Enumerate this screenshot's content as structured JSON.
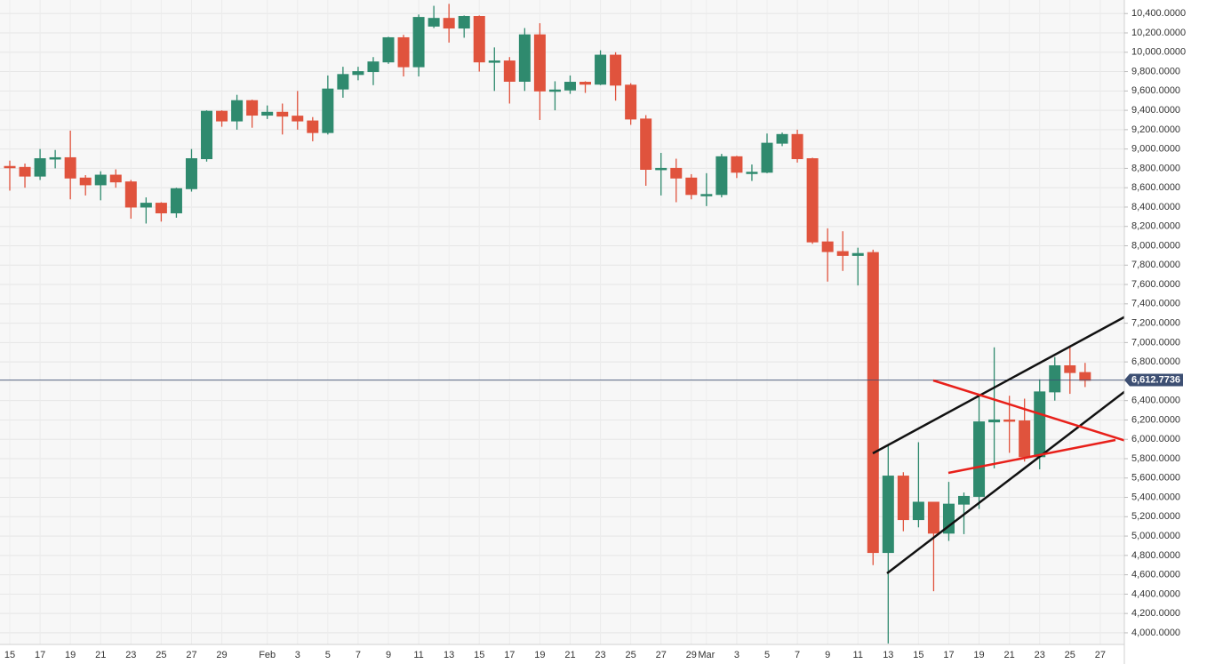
{
  "chart_data": {
    "type": "candlestick",
    "categories": [
      "15",
      null,
      "17",
      null,
      "19",
      null,
      "21",
      null,
      "23",
      null,
      "25",
      null,
      "27",
      null,
      "29",
      null,
      null,
      "Feb",
      null,
      "3",
      null,
      "5",
      null,
      "7",
      null,
      "9",
      null,
      "11",
      null,
      "13",
      null,
      "15",
      null,
      "17",
      null,
      "19",
      null,
      "21",
      null,
      "23",
      null,
      "25",
      null,
      "27",
      null,
      "29",
      "Mar",
      null,
      "3",
      null,
      "5",
      null,
      "7",
      null,
      "9",
      null,
      "11",
      null,
      "13",
      null,
      "15",
      null,
      "17",
      null,
      "19",
      null,
      "21",
      null,
      "23",
      null,
      "25",
      null,
      "27"
    ],
    "open": [
      8820,
      8810,
      8720,
      8900,
      8910,
      8700,
      8630,
      8730,
      8660,
      8400,
      8440,
      8340,
      8590,
      8900,
      9390,
      9290,
      9500,
      9350,
      9380,
      9340,
      9290,
      9170,
      9620,
      9770,
      9800,
      9900,
      10150,
      9850,
      10270,
      10350,
      10250,
      10370,
      9900,
      9910,
      9700,
      10180,
      9600,
      9610,
      9690,
      9670,
      9970,
      9660,
      9310,
      8790,
      8800,
      8700,
      8530,
      8530,
      8920,
      8760,
      8760,
      9060,
      9150,
      8900,
      8040,
      7940,
      7900,
      7930,
      4830,
      5620,
      5170,
      5350,
      5030,
      5330,
      5410,
      6180,
      6200,
      6190,
      5820,
      6490,
      6760,
      6690,
      null
    ],
    "high": [
      8880,
      8850,
      9000,
      8990,
      9190,
      8730,
      8770,
      8790,
      8680,
      8500,
      8450,
      8600,
      9000,
      9400,
      9400,
      9560,
      9510,
      9450,
      9470,
      9600,
      9330,
      9760,
      9850,
      9850,
      9950,
      10160,
      10180,
      10390,
      10480,
      10500,
      10380,
      10380,
      10050,
      9950,
      10250,
      10300,
      9700,
      9760,
      9700,
      10020,
      10000,
      9680,
      9350,
      8960,
      8900,
      8740,
      8750,
      8950,
      8930,
      8840,
      9160,
      9170,
      9200,
      8910,
      8180,
      8150,
      7980,
      7960,
      5950,
      5660,
      5970,
      5350,
      5560,
      5450,
      6450,
      6950,
      6450,
      6420,
      6620,
      6850,
      6970,
      6790,
      null
    ],
    "low": [
      8570,
      8600,
      8680,
      8800,
      8480,
      8520,
      8470,
      8600,
      8280,
      8230,
      8250,
      8290,
      8560,
      8870,
      9230,
      9200,
      9220,
      9310,
      9150,
      9200,
      9080,
      9150,
      9530,
      9710,
      9660,
      9880,
      9750,
      9750,
      10250,
      10100,
      10150,
      9800,
      9600,
      9470,
      9600,
      9300,
      9400,
      9570,
      9580,
      9660,
      9500,
      9250,
      8620,
      8520,
      8450,
      8480,
      8410,
      8500,
      8700,
      8670,
      8750,
      9030,
      8860,
      8020,
      7630,
      7740,
      7590,
      4700,
      3890,
      5050,
      5090,
      4430,
      4950,
      5020,
      5280,
      5700,
      5860,
      5770,
      5690,
      6400,
      6470,
      6540,
      null
    ],
    "close": [
      8810,
      8720,
      8900,
      8910,
      8700,
      8630,
      8730,
      8660,
      8400,
      8440,
      8340,
      8590,
      8900,
      9390,
      9290,
      9500,
      9350,
      9380,
      9340,
      9290,
      9170,
      9620,
      9770,
      9800,
      9900,
      10150,
      9850,
      10360,
      10350,
      10250,
      10370,
      9900,
      9910,
      9700,
      10180,
      9600,
      9610,
      9690,
      9670,
      9970,
      9660,
      9310,
      8790,
      8800,
      8700,
      8530,
      8530,
      8920,
      8760,
      8760,
      9060,
      9150,
      8900,
      8040,
      7940,
      7900,
      7920,
      4830,
      5620,
      5170,
      5350,
      5030,
      5330,
      5410,
      6180,
      6200,
      6190,
      5820,
      6490,
      6760,
      6690,
      6610,
      null
    ],
    "up_color": "#2f8a6e",
    "down_color": "#e0533d",
    "ylim": [
      3880,
      10540
    ],
    "yticks": [
      {
        "value": 4000,
        "label": "4,000.0000"
      },
      {
        "value": 4200,
        "label": "4,200.0000"
      },
      {
        "value": 4400,
        "label": "4,400.0000"
      },
      {
        "value": 4600,
        "label": "4,600.0000"
      },
      {
        "value": 4800,
        "label": "4,800.0000"
      },
      {
        "value": 5000,
        "label": "5,000.0000"
      },
      {
        "value": 5200,
        "label": "5,200.0000"
      },
      {
        "value": 5400,
        "label": "5,400.0000"
      },
      {
        "value": 5600,
        "label": "5,600.0000"
      },
      {
        "value": 5800,
        "label": "5,800.0000"
      },
      {
        "value": 6000,
        "label": "6,000.0000"
      },
      {
        "value": 6200,
        "label": "6,200.0000"
      },
      {
        "value": 6400,
        "label": "6,400.0000"
      },
      {
        "value": 6600,
        "label": "6,600.0000"
      },
      {
        "value": 6800,
        "label": "6,800.0000"
      },
      {
        "value": 7000,
        "label": "7,000.0000"
      },
      {
        "value": 7200,
        "label": "7,200.0000"
      },
      {
        "value": 7400,
        "label": "7,400.0000"
      },
      {
        "value": 7600,
        "label": "7,600.0000"
      },
      {
        "value": 7800,
        "label": "7,800.0000"
      },
      {
        "value": 8000,
        "label": "8,000.0000"
      },
      {
        "value": 8200,
        "label": "8,200.0000"
      },
      {
        "value": 8400,
        "label": "8,400.0000"
      },
      {
        "value": 8600,
        "label": "8,600.0000"
      },
      {
        "value": 8800,
        "label": "8,800.0000"
      },
      {
        "value": 9000,
        "label": "9,000.0000"
      },
      {
        "value": 9200,
        "label": "9,200.0000"
      },
      {
        "value": 9400,
        "label": "9,400.0000"
      },
      {
        "value": 9600,
        "label": "9,600.0000"
      },
      {
        "value": 9800,
        "label": "9,800.0000"
      },
      {
        "value": 10000,
        "label": "10,000.0000"
      },
      {
        "value": 10200,
        "label": "10,200.0000"
      },
      {
        "value": 10400,
        "label": "10,400.0000"
      }
    ],
    "grid": true,
    "last_price": {
      "value": 6612.7736,
      "label": "6,612.7736"
    },
    "last_price_color": "#3d4f73"
  }
}
